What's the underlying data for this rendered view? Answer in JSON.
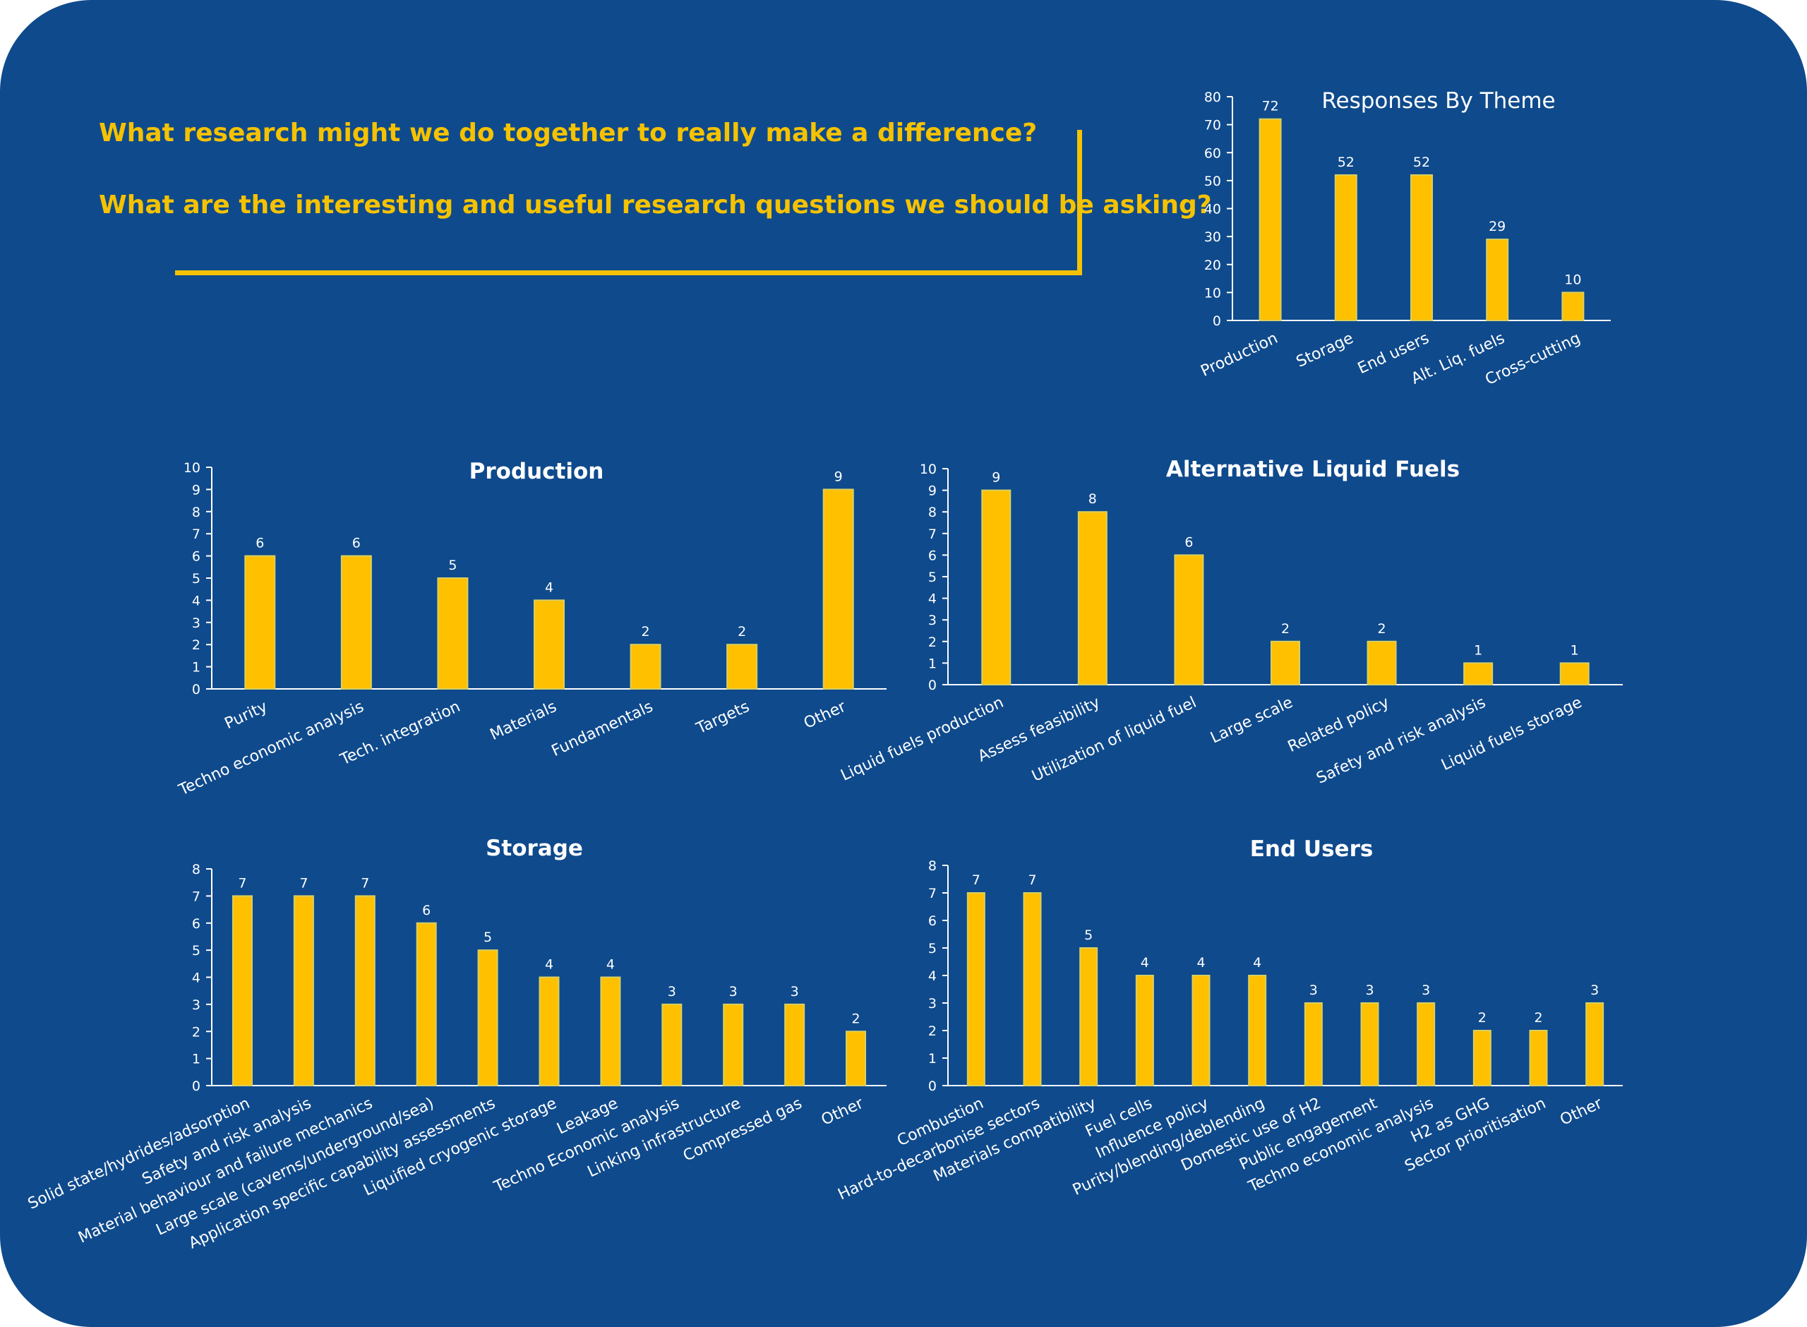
{
  "questions": [
    "What research might we do together to really make a difference?",
    "What are the interesting and useful research questions we should be asking?"
  ],
  "colors": {
    "background": "#0f4a8c",
    "accent": "#f5c200",
    "bar": "#ffc000"
  },
  "chart_data": [
    {
      "id": "theme",
      "type": "bar",
      "title": "Responses By Theme",
      "categories": [
        "Production",
        "Storage",
        "End users",
        "Alt. Liq. fuels",
        "Cross-cutting"
      ],
      "values": [
        72,
        52,
        52,
        29,
        10
      ],
      "ylim": [
        0,
        80
      ],
      "ystep": 10,
      "grid": false,
      "legend": "none"
    },
    {
      "id": "production",
      "type": "bar",
      "title": "Production",
      "categories": [
        "Purity",
        "Techno economic analysis",
        "Tech. integration",
        "Materials",
        "Fundamentals",
        "Targets",
        "Other"
      ],
      "values": [
        6,
        6,
        5,
        4,
        2,
        2,
        9
      ],
      "ylim": [
        0,
        10
      ],
      "ystep": 1,
      "grid": false,
      "legend": "none"
    },
    {
      "id": "altfuels",
      "type": "bar",
      "title": "Alternative Liquid Fuels",
      "categories": [
        "Liquid fuels production",
        "Assess feasibility",
        "Utilization of liquid fuel",
        "Large scale",
        "Related policy",
        "Safety and risk analysis",
        "Liquid fuels storage"
      ],
      "values": [
        9,
        8,
        6,
        2,
        2,
        1,
        1
      ],
      "ylim": [
        0,
        10
      ],
      "ystep": 1,
      "grid": false,
      "legend": "none"
    },
    {
      "id": "storage",
      "type": "bar",
      "title": "Storage",
      "categories": [
        "Solid state/hydrides/adsorption",
        "Safety and risk analysis",
        "Material behaviour and failure mechanics",
        "Large scale (caverns/underground/sea)",
        "Application specific capability assessments",
        "Liquified cryogenic storage",
        "Leakage",
        "Techno Economic analysis",
        "Linking infrastructure",
        "Compressed gas",
        "Other"
      ],
      "values": [
        7,
        7,
        7,
        6,
        5,
        4,
        4,
        3,
        3,
        3,
        2
      ],
      "ylim": [
        0,
        8
      ],
      "ystep": 1,
      "grid": false,
      "legend": "none"
    },
    {
      "id": "endusers",
      "type": "bar",
      "title": "End Users",
      "categories": [
        "Combustion",
        "Hard-to-decarbonise sectors",
        "Materials compatibility",
        "Fuel cells",
        "Influence policy",
        "Purity/blending/deblending",
        "Domestic use of H2",
        "Public engagement",
        "Techno economic analysis",
        "H2 as GHG",
        "Sector prioritisation",
        "Other"
      ],
      "values": [
        7,
        7,
        5,
        4,
        4,
        4,
        3,
        3,
        3,
        2,
        2,
        3
      ],
      "ylim": [
        0,
        8
      ],
      "ystep": 1,
      "grid": false,
      "legend": "none"
    }
  ]
}
